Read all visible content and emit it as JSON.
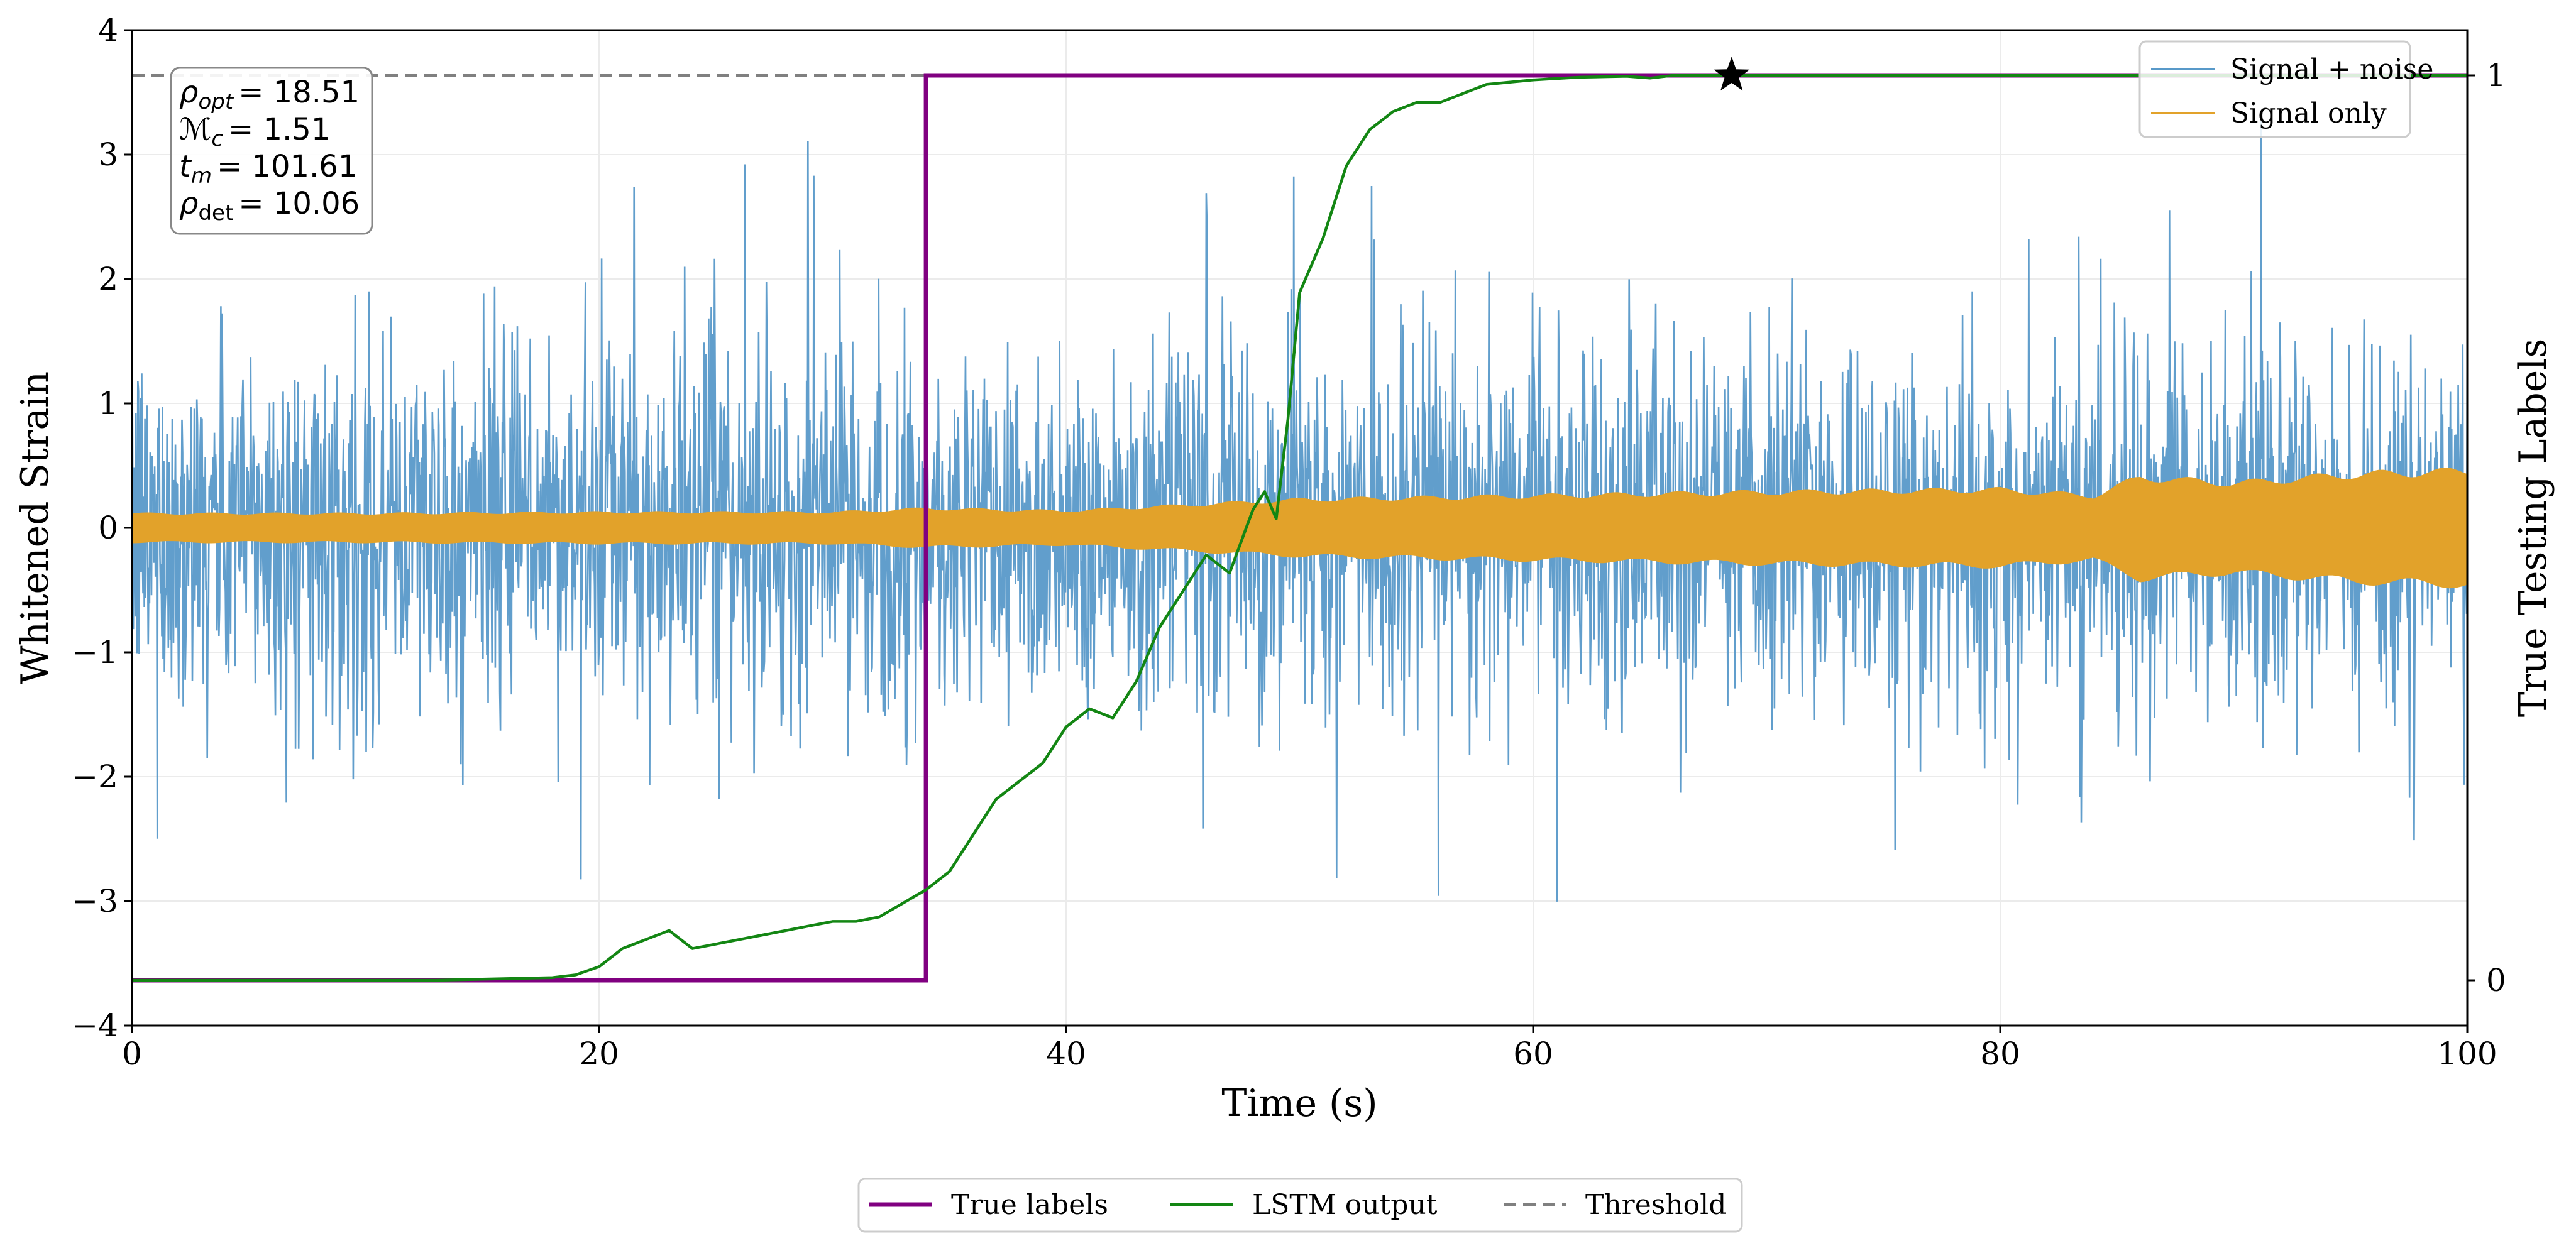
{
  "chart_data": {
    "type": "line",
    "xlabel": "Time (s)",
    "ylabel": "Whitened Strain",
    "y2label": "True Testing Labels",
    "xlim": [
      0,
      100
    ],
    "ylim": [
      -4,
      4
    ],
    "y2lim": [
      -0.05,
      1.05
    ],
    "x_ticks": [
      0,
      20,
      40,
      60,
      80,
      100
    ],
    "x_tick_labels": [
      "0",
      "20",
      "40",
      "60",
      "80",
      "100"
    ],
    "y_ticks": [
      -4,
      -3,
      -2,
      -1,
      0,
      1,
      2,
      3,
      4
    ],
    "y_tick_labels": [
      "−4",
      "−3",
      "−2",
      "−1",
      "0",
      "1",
      "2",
      "3",
      "4"
    ],
    "y2_ticks": [
      0,
      1
    ],
    "y2_tick_labels": [
      "0",
      "1"
    ],
    "grid": true,
    "series": [
      {
        "name": "Signal + noise",
        "axis": "left",
        "color": "#5899c9",
        "style": "noise",
        "noise_sigma": 0.72,
        "spike_max": 3.7
      },
      {
        "name": "Signal only",
        "axis": "left",
        "color": "#e2a22a",
        "style": "band",
        "x": [
          0,
          10,
          20,
          30,
          34,
          40,
          50,
          60,
          70,
          80,
          84,
          86,
          90,
          95,
          100
        ],
        "amplitude": [
          0.11,
          0.11,
          0.12,
          0.12,
          0.15,
          0.13,
          0.22,
          0.25,
          0.28,
          0.3,
          0.25,
          0.4,
          0.35,
          0.42,
          0.45
        ]
      },
      {
        "name": "True labels",
        "axis": "right",
        "color": "#800080",
        "style": "step",
        "x": [
          0,
          34,
          34,
          100
        ],
        "y": [
          0,
          0,
          1,
          1
        ]
      },
      {
        "name": "LSTM output",
        "axis": "right",
        "color": "#138613",
        "style": "line",
        "x": [
          0,
          13,
          18,
          19,
          20,
          21,
          22,
          23,
          24,
          25,
          26,
          27,
          28,
          29,
          30,
          31,
          32,
          33,
          34,
          35,
          36,
          37,
          38,
          39,
          40,
          41,
          42,
          43,
          44,
          45,
          46,
          47,
          48,
          48.5,
          49,
          49.5,
          50,
          51,
          52,
          53,
          54,
          55,
          56,
          57,
          58,
          60,
          62,
          64,
          65,
          66,
          68,
          70,
          72,
          100
        ],
        "y": [
          0,
          0,
          0.003,
          0.006,
          0.015,
          0.035,
          0.045,
          0.055,
          0.035,
          0.04,
          0.045,
          0.05,
          0.055,
          0.06,
          0.065,
          0.065,
          0.07,
          0.085,
          0.1,
          0.12,
          0.16,
          0.2,
          0.22,
          0.24,
          0.28,
          0.3,
          0.29,
          0.33,
          0.39,
          0.43,
          0.47,
          0.45,
          0.52,
          0.54,
          0.51,
          0.62,
          0.76,
          0.82,
          0.9,
          0.94,
          0.96,
          0.97,
          0.97,
          0.98,
          0.99,
          0.995,
          0.998,
          0.999,
          0.997,
          1.0,
          1.0,
          1.0,
          1.0,
          1.0
        ]
      },
      {
        "name": "Threshold",
        "axis": "right",
        "color": "#808080",
        "style": "dashed",
        "y": 1.0
      }
    ],
    "detection_marker": {
      "x": 68.5,
      "y": 1.0,
      "symbol": "star"
    },
    "annotation": {
      "position": "top-left",
      "lines": [
        {
          "symbol": "ρ",
          "sub": "opt",
          "sub_italic": true,
          "value": "= 18.51"
        },
        {
          "symbol": "ℳ",
          "sub": "c",
          "sub_italic": true,
          "value": "= 1.51"
        },
        {
          "symbol": "t",
          "sub": "m",
          "sub_italic": true,
          "value": "= 101.61"
        },
        {
          "symbol": "ρ",
          "sub": "det",
          "sub_italic": false,
          "value": "= 10.06"
        }
      ]
    },
    "legend_top": {
      "position": "top-right",
      "entries": [
        "Signal + noise",
        "Signal only"
      ]
    },
    "legend_bottom": {
      "position": "below",
      "entries": [
        "True labels",
        "LSTM output",
        "Threshold"
      ]
    }
  }
}
